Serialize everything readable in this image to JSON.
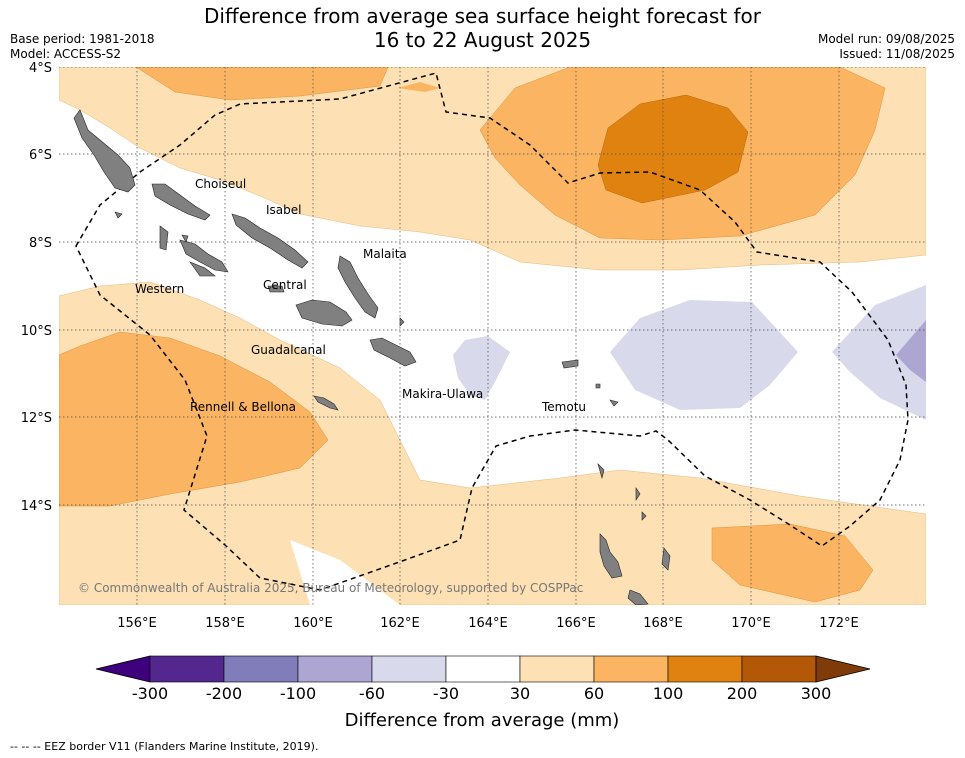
{
  "title_line1": "Difference from average sea surface height forecast for",
  "title_line2": "16 to 22 August 2025",
  "base_period": "Base period: 1981-2018",
  "model": "Model: ACCESS-S2",
  "model_run": "Model run: 09/08/2025",
  "issued": "Issued: 11/08/2025",
  "lat_labels": [
    "4°S",
    "6°S",
    "8°S",
    "10°S",
    "12°S",
    "14°S"
  ],
  "lon_labels": [
    "156°E",
    "158°E",
    "160°E",
    "162°E",
    "164°E",
    "166°E",
    "168°E",
    "170°E",
    "172°E"
  ],
  "regions": [
    "Choiseul",
    "Isabel",
    "Malaita",
    "Western",
    "Central",
    "Guadalcanal",
    "Makira-Ulawa",
    "Temotu",
    "Rennell & Bellona"
  ],
  "copyright": "© Commonwealth of Australia 2025, Bureau of Meteorology, supported by COSPPac",
  "colorbar": {
    "label": "Difference from average (mm)",
    "ticks": [
      "-300",
      "-200",
      "-100",
      "-60",
      "-30",
      "30",
      "60",
      "100",
      "200",
      "300"
    ],
    "colors": [
      "#3f007d",
      "#54278f",
      "#807dba",
      "#aea6d2",
      "#d9d9ec",
      "#ffffff",
      "#fde0b3",
      "#fbb562",
      "#e0820f",
      "#b35806",
      "#7f3b08"
    ]
  },
  "legend_note": "--  --  -- EEZ border V11 (Flanders Marine Institute, 2019)."
}
